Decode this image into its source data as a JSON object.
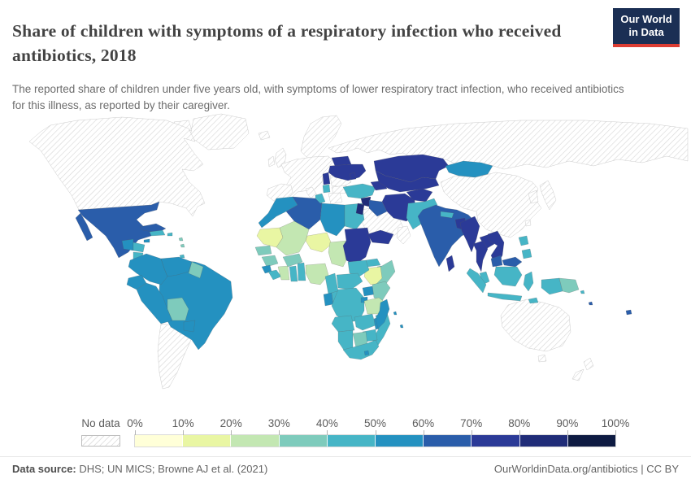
{
  "header": {
    "title": "Share of children with symptoms of a respiratory infection who received antibiotics, 2018",
    "subtitle": "The reported share of children under five years old, with symptoms of lower respiratory tract infection, who received antibiotics for this illness, as reported by their caregiver.",
    "logo": {
      "line1": "Our World",
      "line2": "in Data",
      "bg": "#1b2f54",
      "accent": "#dc3d33"
    }
  },
  "legend": {
    "no_data_label": "No data",
    "ticks": [
      "0%",
      "10%",
      "20%",
      "30%",
      "40%",
      "50%",
      "60%",
      "70%",
      "80%",
      "90%",
      "100%"
    ]
  },
  "footer": {
    "datasource_label": "Data source:",
    "datasource_text": " DHS; UN MICS; Browne AJ et al. (2021)",
    "link": "OurWorldinData.org/antibiotics | CC BY"
  },
  "chart_data": {
    "type": "choropleth",
    "title": "Share of children with symptoms of a respiratory infection who received antibiotics, 2018",
    "unit": "%",
    "year": "2018",
    "value_range": [
      0,
      100
    ],
    "legend_bins": [
      {
        "range": "0-10%",
        "color": "#ffffd8"
      },
      {
        "range": "10-20%",
        "color": "#e9f6a3"
      },
      {
        "range": "20-30%",
        "color": "#c3e7b2"
      },
      {
        "range": "30-40%",
        "color": "#7ecbbc"
      },
      {
        "range": "40-50%",
        "color": "#46b5c6"
      },
      {
        "range": "50-60%",
        "color": "#2491c0"
      },
      {
        "range": "60-70%",
        "color": "#2a5daa"
      },
      {
        "range": "70-80%",
        "color": "#2b3a97"
      },
      {
        "range": "80-90%",
        "color": "#202c78"
      },
      {
        "range": "90-100%",
        "color": "#0e1b42"
      }
    ],
    "no_data": {
      "label": "No data",
      "pattern": "diagonal-hatch"
    },
    "regions": {
      "greenland": {
        "label": "Greenland",
        "value": "No data",
        "color": "no-data"
      },
      "north-america": {
        "label": "Canada & United States",
        "value": "No data",
        "color": "no-data"
      },
      "mexico": {
        "label": "Mexico",
        "value": "60-70%",
        "color": "#2a5daa"
      },
      "guatemala": {
        "label": "Guatemala",
        "value": "50-60%",
        "color": "#2491c0"
      },
      "honduras": {
        "label": "Honduras",
        "value": "40-50%",
        "color": "#46b5c6"
      },
      "nicaragua": {
        "label": "Nicaragua",
        "value": "40-50%",
        "color": "#46b5c6"
      },
      "costa-rica": {
        "label": "Costa Rica",
        "value": "40-50%",
        "color": "#46b5c6"
      },
      "panama": {
        "label": "Panama",
        "value": "80-90%",
        "color": "#202c78"
      },
      "cuba": {
        "label": "Cuba",
        "value": "60-70%",
        "color": "#2a5daa"
      },
      "jamaica": {
        "label": "Jamaica",
        "value": "50-60%",
        "color": "#2491c0"
      },
      "hispaniola": {
        "label": "Haiti & Dominican Republic",
        "value": "40-50%",
        "color": "#46b5c6"
      },
      "puerto-rico": {
        "label": "Puerto Rico",
        "value": "40-50%",
        "color": "#46b5c6"
      },
      "lesser-antilles": {
        "label": "Lesser Antilles",
        "value": "30-40%",
        "color": "#7ecbbc"
      },
      "trinidad": {
        "label": "Trinidad and Tobago",
        "value": "40-50%",
        "color": "#46b5c6"
      },
      "colombia": {
        "label": "Colombia",
        "value": "50-60%",
        "color": "#2491c0"
      },
      "venezuela": {
        "label": "Venezuela",
        "value": "50-60%",
        "color": "#2491c0"
      },
      "guyana-suriname": {
        "label": "Guyana & Suriname",
        "value": "30-40%",
        "color": "#7ecbbc"
      },
      "ecuador": {
        "label": "Ecuador",
        "value": "50-60%",
        "color": "#2491c0"
      },
      "peru": {
        "label": "Peru",
        "value": "50-60%",
        "color": "#2491c0"
      },
      "brazil": {
        "label": "Brazil",
        "value": "50-60%",
        "color": "#2491c0"
      },
      "bolivia": {
        "label": "Bolivia",
        "value": "30-40%",
        "color": "#7ecbbc"
      },
      "paraguay": {
        "label": "Paraguay",
        "value": "50-60%",
        "color": "#2491c0"
      },
      "argentina-chile": {
        "label": "Argentina & Chile",
        "value": "No data",
        "color": "no-data"
      },
      "iceland": {
        "label": "Iceland",
        "value": "No data",
        "color": "no-data"
      },
      "uk": {
        "label": "United Kingdom",
        "value": "No data",
        "color": "no-data"
      },
      "ireland": {
        "label": "Ireland",
        "value": "No data",
        "color": "no-data"
      },
      "scandinavia": {
        "label": "Scandinavia",
        "value": "No data",
        "color": "no-data"
      },
      "western-europe": {
        "label": "Western & Central Europe",
        "value": "No data",
        "color": "no-data"
      },
      "iberia": {
        "label": "Spain & Portugal",
        "value": "No data",
        "color": "no-data"
      },
      "italy": {
        "label": "Italy",
        "value": "No data",
        "color": "no-data"
      },
      "romania": {
        "label": "Romania",
        "value": "No data",
        "color": "no-data"
      },
      "bulgaria": {
        "label": "Bulgaria",
        "value": "No data",
        "color": "no-data"
      },
      "greece": {
        "label": "Greece",
        "value": "No data",
        "color": "no-data"
      },
      "russia": {
        "label": "Russia",
        "value": "No data",
        "color": "no-data"
      },
      "belarus": {
        "label": "Belarus",
        "value": "70-80%",
        "color": "#2b3a97"
      },
      "ukraine": {
        "label": "Ukraine",
        "value": "70-80%",
        "color": "#2b3a97"
      },
      "moldova": {
        "label": "Moldova",
        "value": "70-80%",
        "color": "#2b3a97"
      },
      "serbia": {
        "label": "Serbia",
        "value": "70-80%",
        "color": "#2b3a97"
      },
      "albania": {
        "label": "Albania & North Macedonia",
        "value": "40-50%",
        "color": "#46b5c6"
      },
      "turkey": {
        "label": "Turkey",
        "value": "40-50%",
        "color": "#46b5c6"
      },
      "caucasus": {
        "label": "Armenia, Azerbaijan & Georgia",
        "value": "70-80%",
        "color": "#2b3a97"
      },
      "morocco": {
        "label": "Morocco",
        "value": "50-60%",
        "color": "#2491c0"
      },
      "algeria": {
        "label": "Algeria",
        "value": "60-70%",
        "color": "#2a5daa"
      },
      "tunisia": {
        "label": "Tunisia",
        "value": "40-50%",
        "color": "#46b5c6"
      },
      "libya": {
        "label": "Libya",
        "value": "50-60%",
        "color": "#2491c0"
      },
      "egypt": {
        "label": "Egypt",
        "value": "40-50%",
        "color": "#46b5c6"
      },
      "mauritania": {
        "label": "Mauritania",
        "value": "10-20%",
        "color": "#e9f6a3"
      },
      "mali": {
        "label": "Mali",
        "value": "20-30%",
        "color": "#c3e7b2"
      },
      "niger": {
        "label": "Niger",
        "value": "10-20%",
        "color": "#e9f6a3"
      },
      "chad": {
        "label": "Chad",
        "value": "20-30%",
        "color": "#c3e7b2"
      },
      "sudan": {
        "label": "Sudan",
        "value": "70-80%",
        "color": "#2b3a97"
      },
      "eritrea": {
        "label": "Eritrea",
        "value": "40-50%",
        "color": "#46b5c6"
      },
      "djibouti": {
        "label": "Djibouti",
        "value": "40-50%",
        "color": "#46b5c6"
      },
      "ethiopia": {
        "label": "Ethiopia",
        "value": "10-20%",
        "color": "#e9f6a3"
      },
      "somalia": {
        "label": "Somalia",
        "value": "30-40%",
        "color": "#7ecbbc"
      },
      "south-sudan": {
        "label": "South Sudan",
        "value": "40-50%",
        "color": "#46b5c6"
      },
      "senegal": {
        "label": "Senegal",
        "value": "30-40%",
        "color": "#7ecbbc"
      },
      "guinea": {
        "label": "Guinea",
        "value": "30-40%",
        "color": "#7ecbbc"
      },
      "sierra-leone": {
        "label": "Sierra Leone",
        "value": "50-60%",
        "color": "#2491c0"
      },
      "liberia": {
        "label": "Liberia",
        "value": "40-50%",
        "color": "#46b5c6"
      },
      "ivory-coast": {
        "label": "Cote d'Ivoire",
        "value": "20-30%",
        "color": "#c3e7b2"
      },
      "ghana": {
        "label": "Ghana",
        "value": "40-50%",
        "color": "#46b5c6"
      },
      "togo-benin": {
        "label": "Togo & Benin",
        "value": "40-50%",
        "color": "#46b5c6"
      },
      "burkina-faso": {
        "label": "Burkina Faso",
        "value": "30-40%",
        "color": "#7ecbbc"
      },
      "nigeria": {
        "label": "Nigeria",
        "value": "20-30%",
        "color": "#c3e7b2"
      },
      "cameroon": {
        "label": "Cameroon",
        "value": "40-50%",
        "color": "#46b5c6"
      },
      "central-african-republic": {
        "label": "Central African Republic",
        "value": "40-50%",
        "color": "#46b5c6"
      },
      "gabon": {
        "label": "Gabon",
        "value": "50-60%",
        "color": "#2491c0"
      },
      "congo": {
        "label": "Congo",
        "value": "40-50%",
        "color": "#46b5c6"
      },
      "drc": {
        "label": "Democratic Republic of Congo",
        "value": "40-50%",
        "color": "#46b5c6"
      },
      "uganda": {
        "label": "Uganda",
        "value": "50-60%",
        "color": "#2491c0"
      },
      "kenya": {
        "label": "Kenya",
        "value": "30-40%",
        "color": "#7ecbbc"
      },
      "rwanda-burundi": {
        "label": "Rwanda & Burundi",
        "value": "50-60%",
        "color": "#2491c0"
      },
      "tanzania": {
        "label": "Tanzania",
        "value": "20-30%",
        "color": "#c3e7b2"
      },
      "angola": {
        "label": "Angola",
        "value": "40-50%",
        "color": "#46b5c6"
      },
      "zambia": {
        "label": "Zambia",
        "value": "40-50%",
        "color": "#46b5c6"
      },
      "malawi": {
        "label": "Malawi",
        "value": "50-60%",
        "color": "#2491c0"
      },
      "mozambique": {
        "label": "Mozambique",
        "value": "40-50%",
        "color": "#46b5c6"
      },
      "zimbabwe": {
        "label": "Zimbabwe",
        "value": "40-50%",
        "color": "#46b5c6"
      },
      "botswana": {
        "label": "Botswana",
        "value": "30-40%",
        "color": "#7ecbbc"
      },
      "namibia": {
        "label": "Namibia",
        "value": "40-50%",
        "color": "#46b5c6"
      },
      "south-africa": {
        "label": "South Africa",
        "value": "40-50%",
        "color": "#46b5c6"
      },
      "lesotho": {
        "label": "Lesotho",
        "value": "50-60%",
        "color": "#2491c0"
      },
      "madagascar": {
        "label": "Madagascar",
        "value": "50-60%",
        "color": "#2491c0"
      },
      "comoros": {
        "label": "Comoros",
        "value": "50-60%",
        "color": "#2491c0"
      },
      "mauritius": {
        "label": "Mauritius",
        "value": "50-60%",
        "color": "#2491c0"
      },
      "saudi-arabia": {
        "label": "Saudi Arabia",
        "value": "No data",
        "color": "no-data"
      },
      "oman": {
        "label": "Oman",
        "value": "No data",
        "color": "no-data"
      },
      "yemen": {
        "label": "Yemen",
        "value": "70-80%",
        "color": "#2b3a97"
      },
      "syria": {
        "label": "Syria",
        "value": "80-90%",
        "color": "#202c78"
      },
      "jordan": {
        "label": "Jordan",
        "value": "80-90%",
        "color": "#202c78"
      },
      "iraq": {
        "label": "Iraq",
        "value": "60-70%",
        "color": "#2a5daa"
      },
      "iran": {
        "label": "Iran",
        "value": "70-80%",
        "color": "#2b3a97"
      },
      "kazakhstan": {
        "label": "Kazakhstan",
        "value": "70-80%",
        "color": "#2b3a97"
      },
      "central-asia": {
        "label": "Uzbekistan, Turkmenistan, Kyrgyzstan & Tajikistan",
        "value": "70-80%",
        "color": "#2b3a97"
      },
      "afghanistan": {
        "label": "Afghanistan",
        "value": "70-80%",
        "color": "#2b3a97"
      },
      "pakistan": {
        "label": "Pakistan",
        "value": "40-50%",
        "color": "#46b5c6"
      },
      "india": {
        "label": "India",
        "value": "60-70%",
        "color": "#2a5daa"
      },
      "nepal": {
        "label": "Nepal",
        "value": "40-50%",
        "color": "#46b5c6"
      },
      "bangladesh": {
        "label": "Bangladesh",
        "value": "70-80%",
        "color": "#2b3a97"
      },
      "sri-lanka": {
        "label": "Sri Lanka",
        "value": "70-80%",
        "color": "#2b3a97"
      },
      "mongolia": {
        "label": "Mongolia",
        "value": "50-60%",
        "color": "#2491c0"
      },
      "china": {
        "label": "China",
        "value": "No data",
        "color": "no-data"
      },
      "korea": {
        "label": "North & South Korea",
        "value": "No data",
        "color": "no-data"
      },
      "japan": {
        "label": "Japan",
        "value": "No data",
        "color": "no-data"
      },
      "taiwan": {
        "label": "Taiwan",
        "value": "No data",
        "color": "no-data"
      },
      "myanmar": {
        "label": "Myanmar",
        "value": "70-80%",
        "color": "#2b3a97"
      },
      "thailand": {
        "label": "Thailand",
        "value": "70-80%",
        "color": "#2b3a97"
      },
      "laos": {
        "label": "Laos",
        "value": "70-80%",
        "color": "#2b3a97"
      },
      "vietnam": {
        "label": "Vietnam",
        "value": "70-80%",
        "color": "#2b3a97"
      },
      "cambodia": {
        "label": "Cambodia",
        "value": "60-70%",
        "color": "#2a5daa"
      },
      "malaysia-peninsula": {
        "label": "Malaysia (Peninsula)",
        "value": "40-50%",
        "color": "#46b5c6"
      },
      "malaysia-borneo": {
        "label": "Malaysia (Borneo)",
        "value": "60-70%",
        "color": "#2a5daa"
      },
      "indonesia": {
        "label": "Indonesia",
        "value": "40-50%",
        "color": "#46b5c6"
      },
      "timor-leste": {
        "label": "Timor-Leste",
        "value": "40-50%",
        "color": "#46b5c6"
      },
      "philippines": {
        "label": "Philippines",
        "value": "40-50%",
        "color": "#46b5c6"
      },
      "papua-new-guinea": {
        "label": "Papua New Guinea",
        "value": "30-40%",
        "color": "#7ecbbc"
      },
      "solomon-islands": {
        "label": "Solomon Islands",
        "value": "40-50%",
        "color": "#46b5c6"
      },
      "vanuatu": {
        "label": "Vanuatu",
        "value": "60-70%",
        "color": "#2a5daa"
      },
      "fiji": {
        "label": "Fiji",
        "value": "60-70%",
        "color": "#2a5daa"
      },
      "australia": {
        "label": "Australia",
        "value": "No data",
        "color": "no-data"
      },
      "new-zealand": {
        "label": "New Zealand",
        "value": "No data",
        "color": "no-data"
      }
    }
  }
}
